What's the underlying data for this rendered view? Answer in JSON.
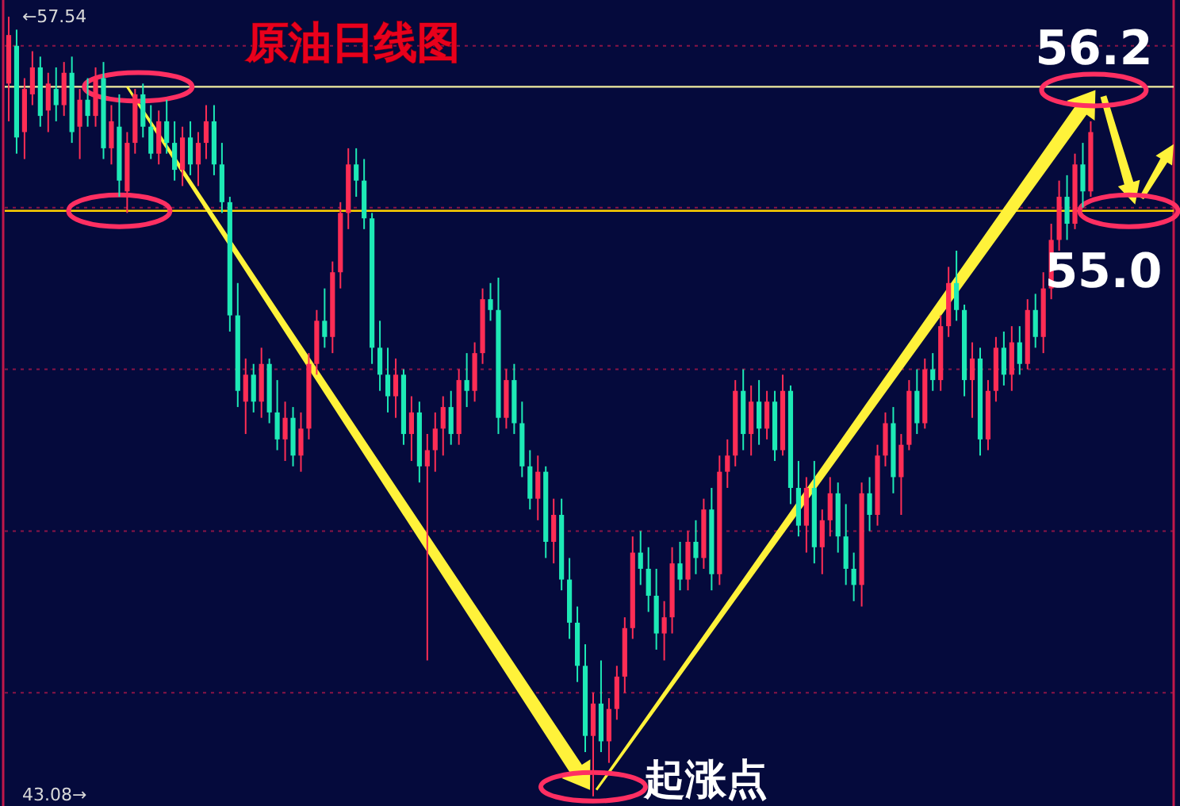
{
  "chart_data": {
    "type": "candlestick",
    "title": "原油日线图",
    "annotations": [
      "56.2",
      "55.0",
      "起涨点"
    ],
    "categories": [
      null,
      null,
      null,
      null,
      null,
      null,
      null,
      null,
      null,
      null,
      null,
      null,
      null,
      null,
      null,
      null,
      null,
      null,
      null,
      null,
      null,
      null,
      null,
      null,
      null,
      null,
      null,
      null,
      null,
      null,
      null,
      null,
      null,
      null,
      null,
      null,
      null,
      null,
      null,
      null,
      null,
      null,
      null,
      null,
      null,
      null,
      null,
      null,
      null,
      null,
      null,
      null,
      null,
      null,
      null,
      null,
      null,
      null,
      null,
      null,
      null,
      null,
      null,
      null,
      null,
      null,
      null,
      null,
      null,
      null,
      null,
      null,
      null,
      null,
      null,
      null,
      null,
      null,
      null,
      null,
      null,
      null,
      null,
      null,
      null,
      null,
      null,
      null,
      null,
      null,
      null,
      null,
      null,
      null,
      null,
      null,
      null,
      null,
      null,
      null,
      null,
      null,
      null,
      null,
      null,
      null,
      null,
      null,
      null,
      null,
      null,
      null,
      null,
      null,
      null,
      null,
      null,
      null,
      null,
      null,
      null,
      null,
      null,
      null,
      null,
      null,
      null,
      null,
      null,
      null,
      null,
      null,
      null,
      null,
      null,
      null,
      null,
      null,
      null,
      null,
      null,
      null,
      null,
      null,
      null,
      null,
      null,
      null
    ],
    "ohlc": [
      [
        56.3,
        57.54,
        55.6,
        57.2
      ],
      [
        57.0,
        57.3,
        55.0,
        55.3
      ],
      [
        55.4,
        56.4,
        54.9,
        56.2
      ],
      [
        56.1,
        56.9,
        55.9,
        56.6
      ],
      [
        56.6,
        56.8,
        55.5,
        55.7
      ],
      [
        55.8,
        56.5,
        55.4,
        56.3
      ],
      [
        56.2,
        56.6,
        55.6,
        55.9
      ],
      [
        55.9,
        56.7,
        55.7,
        56.5
      ],
      [
        56.5,
        56.8,
        55.2,
        55.4
      ],
      [
        55.5,
        56.2,
        54.9,
        56.0
      ],
      [
        56.0,
        56.4,
        55.5,
        55.7
      ],
      [
        55.7,
        56.6,
        55.5,
        56.4
      ],
      [
        56.4,
        56.7,
        54.9,
        55.1
      ],
      [
        55.1,
        55.9,
        54.8,
        55.6
      ],
      [
        55.5,
        56.1,
        54.2,
        54.5
      ],
      [
        54.3,
        55.4,
        53.9,
        55.2
      ],
      [
        55.2,
        56.2,
        55.0,
        56.1
      ],
      [
        56.1,
        56.3,
        55.3,
        55.5
      ],
      [
        55.5,
        55.9,
        54.9,
        55.0
      ],
      [
        55.0,
        55.8,
        54.8,
        55.6
      ],
      [
        55.6,
        56.0,
        55.0,
        55.2
      ],
      [
        55.2,
        55.6,
        54.5,
        54.7
      ],
      [
        54.7,
        55.5,
        54.4,
        55.3
      ],
      [
        55.3,
        55.6,
        54.6,
        54.8
      ],
      [
        54.8,
        55.4,
        54.4,
        55.2
      ],
      [
        55.2,
        55.9,
        54.9,
        55.6
      ],
      [
        55.6,
        55.9,
        54.6,
        54.8
      ],
      [
        54.8,
        55.2,
        53.9,
        54.1
      ],
      [
        54.1,
        54.2,
        51.7,
        52.0
      ],
      [
        52.0,
        52.6,
        50.3,
        50.6
      ],
      [
        50.4,
        51.2,
        49.8,
        50.9
      ],
      [
        50.9,
        51.1,
        50.2,
        50.4
      ],
      [
        50.4,
        51.4,
        50.1,
        51.1
      ],
      [
        51.1,
        51.2,
        50.0,
        50.2
      ],
      [
        50.2,
        50.8,
        49.5,
        49.7
      ],
      [
        49.7,
        50.4,
        49.3,
        50.1
      ],
      [
        50.1,
        50.3,
        49.2,
        49.4
      ],
      [
        49.4,
        50.2,
        49.1,
        49.9
      ],
      [
        49.9,
        51.3,
        49.7,
        51.1
      ],
      [
        51.1,
        52.1,
        50.9,
        51.9
      ],
      [
        51.9,
        52.5,
        51.4,
        51.6
      ],
      [
        51.6,
        53.0,
        51.3,
        52.8
      ],
      [
        52.8,
        54.1,
        52.5,
        53.9
      ],
      [
        53.9,
        55.1,
        53.6,
        54.8
      ],
      [
        54.8,
        55.1,
        54.2,
        54.5
      ],
      [
        54.5,
        54.9,
        53.6,
        53.8
      ],
      [
        53.8,
        53.9,
        51.1,
        51.4
      ],
      [
        51.4,
        51.9,
        50.6,
        50.9
      ],
      [
        50.9,
        51.4,
        50.2,
        50.5
      ],
      [
        50.5,
        51.2,
        50.1,
        50.9
      ],
      [
        50.9,
        51.0,
        49.6,
        49.8
      ],
      [
        49.8,
        50.5,
        49.3,
        50.2
      ],
      [
        50.2,
        50.4,
        48.9,
        49.2
      ],
      [
        49.2,
        49.8,
        45.6,
        49.5
      ],
      [
        49.5,
        50.2,
        49.1,
        49.9
      ],
      [
        49.9,
        50.5,
        49.4,
        50.3
      ],
      [
        50.3,
        50.6,
        49.6,
        49.8
      ],
      [
        49.8,
        51.0,
        49.6,
        50.8
      ],
      [
        50.8,
        51.3,
        50.3,
        50.6
      ],
      [
        50.6,
        51.5,
        50.4,
        51.3
      ],
      [
        51.3,
        52.5,
        51.1,
        52.3
      ],
      [
        52.3,
        52.6,
        51.9,
        52.1
      ],
      [
        52.1,
        52.7,
        49.8,
        50.1
      ],
      [
        50.1,
        51.0,
        49.9,
        50.8
      ],
      [
        50.8,
        51.1,
        49.8,
        50.0
      ],
      [
        50.0,
        50.4,
        49.0,
        49.2
      ],
      [
        49.2,
        49.5,
        48.4,
        48.6
      ],
      [
        48.6,
        49.4,
        48.2,
        49.1
      ],
      [
        49.1,
        49.2,
        47.5,
        47.8
      ],
      [
        47.8,
        48.6,
        47.4,
        48.3
      ],
      [
        48.3,
        48.6,
        46.9,
        47.1
      ],
      [
        47.1,
        47.5,
        46.0,
        46.3
      ],
      [
        46.3,
        46.6,
        45.2,
        45.5
      ],
      [
        45.5,
        45.9,
        43.9,
        44.2
      ],
      [
        44.2,
        45.0,
        43.08,
        44.8
      ],
      [
        44.8,
        45.6,
        43.9,
        44.1
      ],
      [
        44.1,
        44.9,
        43.7,
        44.7
      ],
      [
        44.7,
        45.5,
        44.5,
        45.3
      ],
      [
        45.3,
        46.4,
        45.0,
        46.2
      ],
      [
        46.2,
        47.9,
        46.0,
        47.6
      ],
      [
        47.6,
        48.0,
        47.0,
        47.3
      ],
      [
        47.3,
        47.7,
        46.5,
        46.8
      ],
      [
        46.8,
        47.3,
        45.8,
        46.1
      ],
      [
        46.1,
        46.7,
        45.6,
        46.4
      ],
      [
        46.4,
        47.7,
        46.1,
        47.4
      ],
      [
        47.4,
        47.8,
        46.9,
        47.1
      ],
      [
        47.1,
        48.0,
        46.9,
        47.8
      ],
      [
        47.8,
        48.2,
        47.2,
        47.5
      ],
      [
        47.5,
        48.6,
        47.3,
        48.4
      ],
      [
        48.4,
        48.8,
        46.9,
        47.2
      ],
      [
        47.2,
        49.4,
        47.0,
        49.1
      ],
      [
        49.1,
        49.7,
        48.8,
        49.4
      ],
      [
        49.4,
        50.8,
        49.2,
        50.6
      ],
      [
        50.6,
        51.0,
        49.5,
        49.8
      ],
      [
        49.8,
        50.7,
        49.4,
        50.4
      ],
      [
        50.4,
        50.8,
        49.6,
        49.9
      ],
      [
        49.9,
        50.6,
        49.7,
        50.4
      ],
      [
        50.4,
        50.6,
        49.3,
        49.5
      ],
      [
        49.5,
        50.9,
        49.4,
        50.6
      ],
      [
        50.6,
        50.7,
        48.5,
        48.8
      ],
      [
        48.8,
        49.3,
        47.9,
        48.1
      ],
      [
        48.1,
        49.0,
        47.6,
        48.8
      ],
      [
        48.8,
        49.3,
        47.4,
        47.7
      ],
      [
        47.7,
        48.4,
        47.2,
        48.2
      ],
      [
        48.2,
        49.0,
        47.9,
        48.7
      ],
      [
        48.7,
        48.9,
        47.6,
        47.9
      ],
      [
        47.9,
        48.5,
        47.0,
        47.3
      ],
      [
        47.3,
        47.6,
        46.7,
        47.0
      ],
      [
        47.0,
        48.9,
        46.6,
        48.7
      ],
      [
        48.7,
        49.0,
        48.0,
        48.3
      ],
      [
        48.3,
        49.6,
        48.1,
        49.4
      ],
      [
        49.4,
        50.2,
        49.2,
        50.0
      ],
      [
        50.0,
        50.3,
        48.7,
        49.0
      ],
      [
        49.0,
        49.8,
        48.3,
        49.6
      ],
      [
        49.6,
        50.8,
        49.5,
        50.6
      ],
      [
        50.6,
        51.0,
        49.8,
        50.0
      ],
      [
        50.0,
        51.2,
        49.9,
        51.0
      ],
      [
        51.0,
        51.3,
        50.6,
        50.8
      ],
      [
        50.8,
        52.0,
        50.6,
        51.8
      ],
      [
        51.8,
        52.9,
        51.6,
        52.6
      ],
      [
        52.6,
        53.2,
        51.9,
        52.1
      ],
      [
        52.1,
        52.2,
        50.5,
        50.8
      ],
      [
        50.8,
        51.5,
        50.1,
        51.2
      ],
      [
        51.2,
        51.4,
        49.4,
        49.7
      ],
      [
        49.7,
        50.8,
        49.5,
        50.6
      ],
      [
        50.6,
        51.6,
        50.4,
        51.4
      ],
      [
        51.4,
        51.7,
        50.7,
        50.9
      ],
      [
        50.9,
        51.8,
        50.6,
        51.5
      ],
      [
        51.5,
        51.8,
        50.9,
        51.1
      ],
      [
        51.1,
        52.3,
        51.0,
        52.1
      ],
      [
        52.1,
        52.4,
        51.4,
        51.6
      ],
      [
        51.6,
        52.8,
        51.3,
        52.5
      ],
      [
        52.5,
        53.7,
        52.3,
        53.4
      ],
      [
        53.4,
        54.5,
        53.2,
        54.2
      ],
      [
        54.2,
        54.6,
        53.4,
        53.7
      ],
      [
        53.7,
        55.0,
        53.6,
        54.8
      ],
      [
        54.8,
        55.2,
        54.0,
        54.3
      ],
      [
        54.3,
        55.6,
        54.2,
        55.4
      ],
      null,
      null,
      null,
      null,
      null,
      null,
      null,
      null,
      null,
      null
    ],
    "colors": [
      "#ff2d55",
      "#1de9b6",
      "#ff2d55",
      "#ff2d55",
      "#1de9b6",
      "#ff2d55",
      "#1de9b6",
      "#ff2d55",
      "#1de9b6",
      "#ff2d55",
      "#1de9b6",
      "#ff2d55",
      "#1de9b6",
      "#ff2d55",
      "#1de9b6",
      "#ff2d55",
      "#ff2d55",
      "#1de9b6",
      "#1de9b6",
      "#ff2d55",
      "#1de9b6",
      "#1de9b6",
      "#ff2d55",
      "#1de9b6",
      "#ff2d55",
      "#ff2d55",
      "#1de9b6",
      "#1de9b6",
      "#1de9b6",
      "#1de9b6",
      "#ff2d55",
      "#1de9b6",
      "#ff2d55",
      "#1de9b6",
      "#1de9b6",
      "#ff2d55",
      "#1de9b6",
      "#ff2d55",
      "#ff2d55",
      "#ff2d55",
      "#1de9b6",
      "#ff2d55",
      "#ff2d55",
      "#ff2d55",
      "#1de9b6",
      "#1de9b6",
      "#1de9b6",
      "#1de9b6",
      "#1de9b6",
      "#ff2d55",
      "#1de9b6",
      "#ff2d55",
      "#1de9b6",
      "#ff2d55",
      "#ff2d55",
      "#ff2d55",
      "#1de9b6",
      "#ff2d55",
      "#1de9b6",
      "#ff2d55",
      "#ff2d55",
      "#1de9b6",
      "#1de9b6",
      "#ff2d55",
      "#1de9b6",
      "#1de9b6",
      "#1de9b6",
      "#ff2d55",
      "#1de9b6",
      "#ff2d55",
      "#1de9b6",
      "#1de9b6",
      "#1de9b6",
      "#1de9b6",
      "#ff2d55",
      "#1de9b6",
      "#ff2d55",
      "#ff2d55",
      "#ff2d55",
      "#ff2d55",
      "#1de9b6",
      "#1de9b6",
      "#1de9b6",
      "#ff2d55",
      "#ff2d55",
      "#1de9b6",
      "#ff2d55",
      "#1de9b6",
      "#ff2d55",
      "#1de9b6",
      "#ff2d55",
      "#ff2d55",
      "#ff2d55",
      "#1de9b6",
      "#ff2d55",
      "#1de9b6",
      "#ff2d55",
      "#1de9b6",
      "#ff2d55",
      "#1de9b6",
      "#1de9b6",
      "#ff2d55",
      "#1de9b6",
      "#ff2d55",
      "#ff2d55",
      "#1de9b6",
      "#1de9b6",
      "#1de9b6",
      "#ff2d55",
      "#1de9b6",
      "#ff2d55",
      "#ff2d55",
      "#1de9b6",
      "#ff2d55",
      "#ff2d55",
      "#1de9b6",
      "#ff2d55",
      "#1de9b6",
      "#ff2d55",
      "#ff2d55",
      "#1de9b6",
      "#1de9b6",
      "#ff2d55",
      "#1de9b6",
      "#ff2d55",
      "#ff2d55",
      "#1de9b6",
      "#ff2d55",
      "#1de9b6",
      "#ff2d55",
      "#1de9b6",
      "#ff2d55",
      "#ff2d55",
      "#ff2d55",
      "#1de9b6",
      "#ff2d55",
      "#1de9b6",
      "#ff2d55",
      null,
      null,
      null,
      null,
      null,
      null,
      null,
      null,
      null,
      null
    ],
    "ylim": [
      42.9,
      57.85
    ],
    "yticks": [
      {
        "value": 43.08,
        "label": "43.08→"
      },
      {
        "value": 45,
        "label": null
      },
      {
        "value": 48,
        "label": null
      },
      {
        "value": 51,
        "label": null
      },
      {
        "value": 54,
        "label": null
      },
      {
        "value": 57,
        "label": null
      },
      {
        "value": 57.54,
        "label": "←57.54"
      }
    ],
    "grid": "y",
    "tick_labels": "y",
    "ref_lines": [
      {
        "axis": "y",
        "value": 56.24,
        "color": "#f2eea0"
      },
      {
        "axis": "y",
        "value": 53.94,
        "color": "#ffd000"
      }
    ]
  }
}
